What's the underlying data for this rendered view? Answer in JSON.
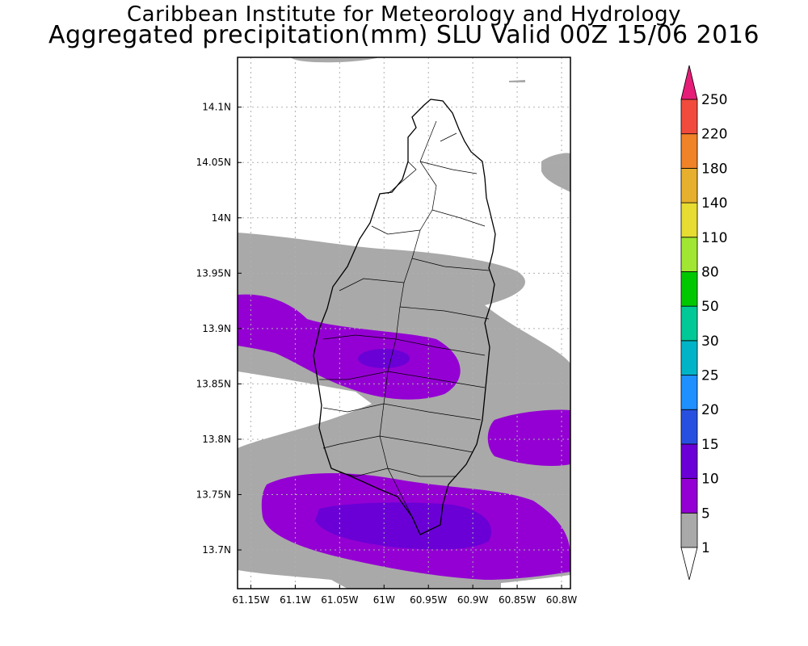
{
  "title": {
    "line1": "Caribbean Institute for Meteorology and Hydrology",
    "line2": "Aggregated precipitation(mm) SLU Valid 00Z 15/06 2016"
  },
  "map": {
    "lon_range": [
      -61.165,
      -60.79
    ],
    "lat_range": [
      13.665,
      14.145
    ],
    "lon_ticks": [
      {
        "value": -61.15,
        "label": "61.15W"
      },
      {
        "value": -61.1,
        "label": "61.1W"
      },
      {
        "value": -61.05,
        "label": "61.05W"
      },
      {
        "value": -61.0,
        "label": "61W"
      },
      {
        "value": -60.95,
        "label": "60.95W"
      },
      {
        "value": -60.9,
        "label": "60.9W"
      },
      {
        "value": -60.85,
        "label": "60.85W"
      },
      {
        "value": -60.8,
        "label": "60.8W"
      }
    ],
    "lat_ticks": [
      {
        "value": 14.1,
        "label": "14.1N"
      },
      {
        "value": 14.05,
        "label": "14.05N"
      },
      {
        "value": 14.0,
        "label": "14N"
      },
      {
        "value": 13.95,
        "label": "13.95N"
      },
      {
        "value": 13.9,
        "label": "13.9N"
      },
      {
        "value": 13.85,
        "label": "13.85N"
      },
      {
        "value": 13.8,
        "label": "13.8N"
      },
      {
        "value": 13.75,
        "label": "13.75N"
      },
      {
        "value": 13.7,
        "label": "13.7N"
      }
    ],
    "grid": true
  },
  "colorbar": {
    "levels": [
      "1",
      "5",
      "10",
      "15",
      "20",
      "25",
      "30",
      "50",
      "80",
      "110",
      "140",
      "180",
      "220",
      "250"
    ],
    "colors": [
      "#a9a9a9",
      "#9400d3",
      "#6a00d6",
      "#2850e0",
      "#1e90ff",
      "#00b4c8",
      "#00c896",
      "#00c800",
      "#a0e632",
      "#e6dc32",
      "#e6af2d",
      "#f08228",
      "#f04b3c"
    ],
    "under_color": "#ffffff",
    "over_color": "#e61e78"
  }
}
